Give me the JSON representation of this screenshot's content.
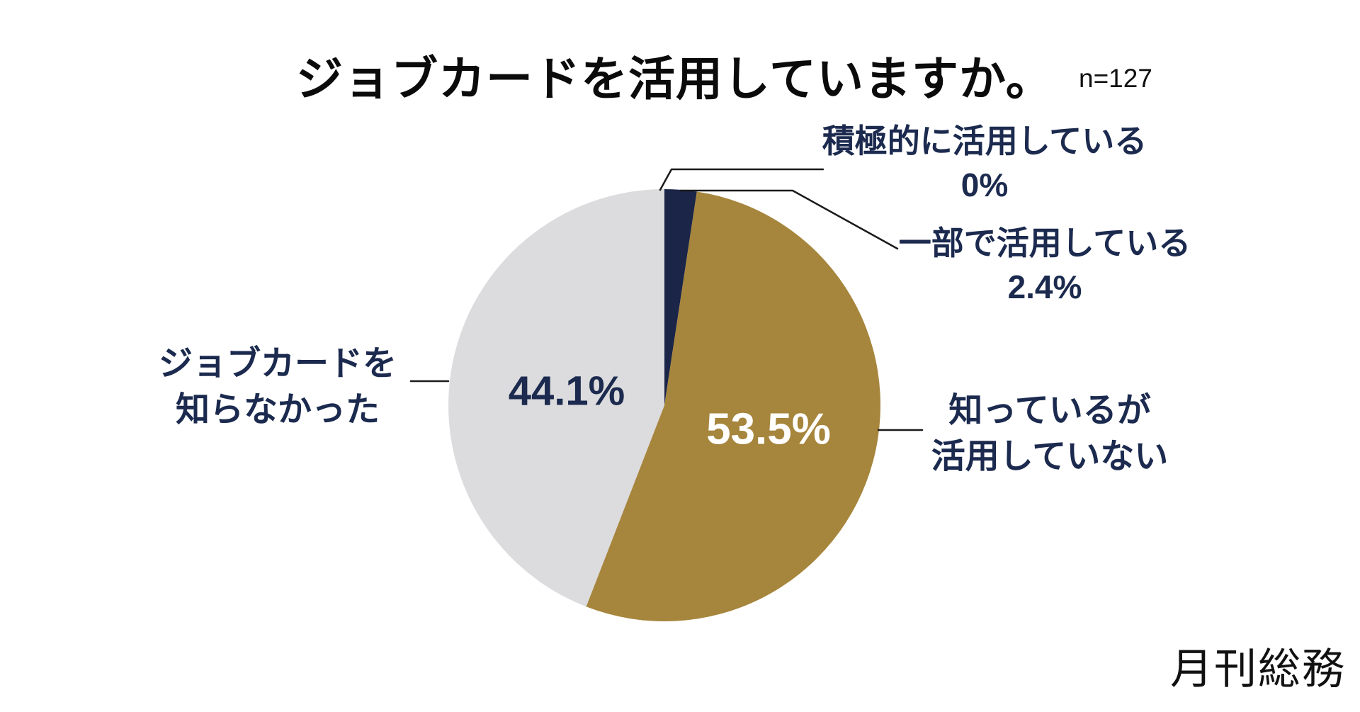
{
  "title": "ジョブカードを活用していますか。",
  "sample_size": "n=127",
  "logo": "月刊総務",
  "colors": {
    "navy": "#1a2548",
    "gold": "#a6853c",
    "gray": "#dcdbdd",
    "text_navy": "#1b2a4e",
    "leader_line": "#1a1a1a"
  },
  "chart_data": {
    "type": "pie",
    "title": "ジョブカードを活用していますか。",
    "sample_label": "n=127",
    "start_angle_deg": 0,
    "direction": "clockwise",
    "legend_position": "callout-labels",
    "slices": [
      {
        "label": "積極的に活用している",
        "value": 0,
        "display": "0%",
        "color": "#1a2548"
      },
      {
        "label": "一部で活用している",
        "value": 2.4,
        "display": "2.4%",
        "color": "#1a2548"
      },
      {
        "label": "知っているが活用していない",
        "value": 53.5,
        "display": "53.5%",
        "color": "#a6853c"
      },
      {
        "label": "ジョブカードを知らなかった",
        "value": 44.1,
        "display": "44.1%",
        "color": "#dcdbdd"
      }
    ]
  },
  "labels": {
    "active_line1": "積極的に活用している",
    "active_value": "0%",
    "partial_line1": "一部で活用している",
    "partial_value": "2.4%",
    "know_line1": "知っているが",
    "know_line2": "活用していない",
    "unknown_line1": "ジョブカードを",
    "unknown_line2": "知らなかった",
    "gray_pct": "44.1%",
    "gold_pct": "53.5%"
  }
}
